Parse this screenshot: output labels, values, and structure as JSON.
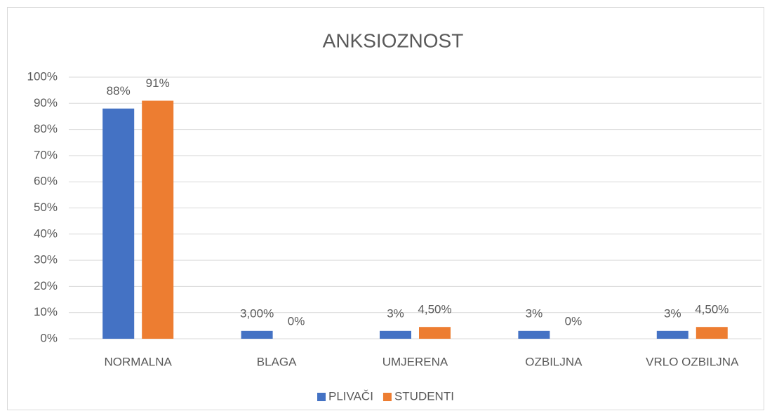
{
  "chart_data": {
    "type": "bar",
    "title": "ANKSIOZNOST",
    "categories": [
      "NORMALNA",
      "BLAGA",
      "UMJERENA",
      "OZBILJNA",
      "VRLO OZBILJNA"
    ],
    "series": [
      {
        "name": "PLIVAČI",
        "color": "#4472c4",
        "values": [
          88,
          3,
          3,
          3,
          3
        ],
        "value_labels": [
          "88%",
          "3,00%",
          "3%",
          "3%",
          "3%"
        ]
      },
      {
        "name": "STUDENTI",
        "color": "#ed7d31",
        "values": [
          91,
          0,
          4.5,
          0,
          4.5
        ],
        "value_labels": [
          "91%",
          "0%",
          "4,50%",
          "0%",
          "4,50%"
        ]
      }
    ],
    "ylim": [
      0,
      100
    ],
    "yticks": [
      {
        "value": 0,
        "label": "0%"
      },
      {
        "value": 10,
        "label": "10%"
      },
      {
        "value": 20,
        "label": "20%"
      },
      {
        "value": 30,
        "label": "30%"
      },
      {
        "value": 40,
        "label": "40%"
      },
      {
        "value": 50,
        "label": "50%"
      },
      {
        "value": 60,
        "label": "60%"
      },
      {
        "value": 70,
        "label": "70%"
      },
      {
        "value": 80,
        "label": "80%"
      },
      {
        "value": 90,
        "label": "90%"
      },
      {
        "value": 100,
        "label": "100%"
      }
    ],
    "grid": true,
    "legend": "bottom"
  }
}
